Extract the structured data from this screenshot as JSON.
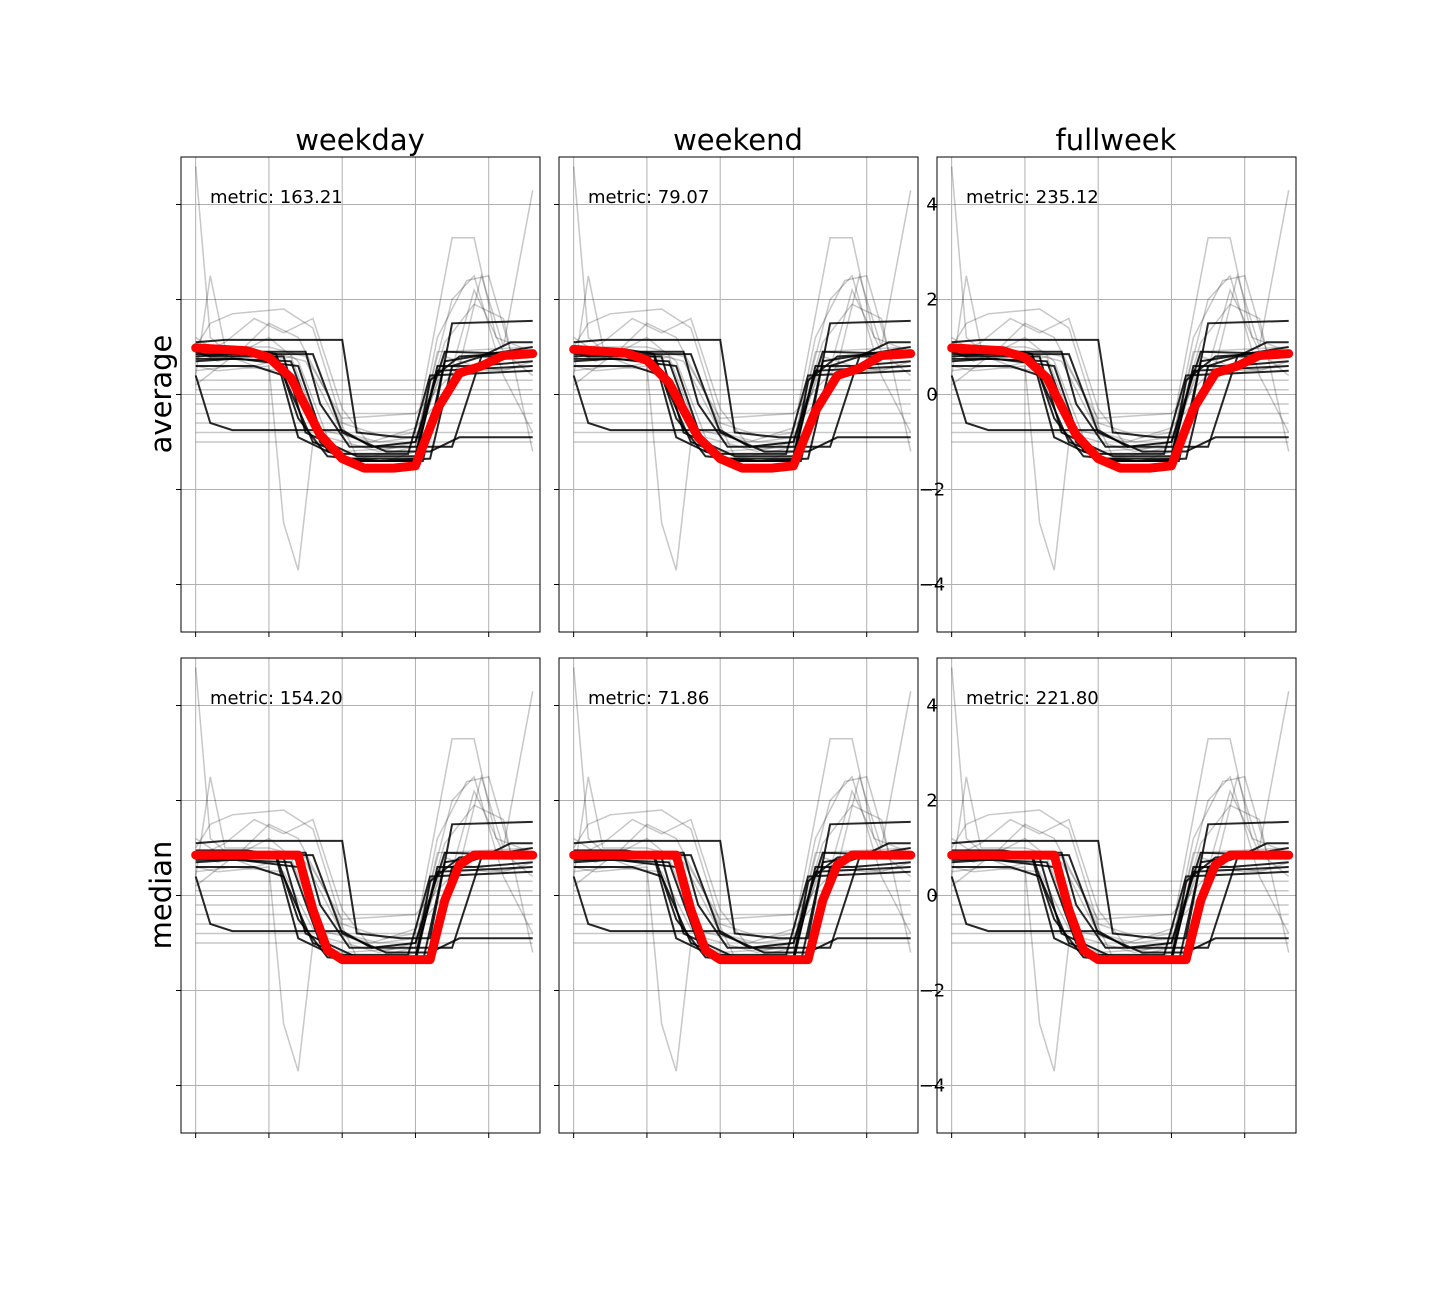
{
  "figure": {
    "columns": [
      "weekday",
      "weekend",
      "fullweek"
    ],
    "rows": [
      "average",
      "median"
    ]
  },
  "chart_data": {
    "type": "line",
    "ylim": [
      -5,
      5
    ],
    "xlim": [
      -0.2,
      4.7
    ],
    "yticks": [
      -4,
      -2,
      0,
      2,
      4
    ],
    "ytick_labels": [
      "−4",
      "−2",
      "0",
      "2",
      "4"
    ],
    "xticks": [
      0,
      1,
      2,
      3,
      4
    ],
    "grid": true,
    "panels": [
      {
        "row": "average",
        "column": "weekday",
        "metric_label": "metric: 163.21",
        "show_ytick_labels": false,
        "center": [
          [
            0,
            0.98
          ],
          [
            0.7,
            0.92
          ],
          [
            1.0,
            0.78
          ],
          [
            1.3,
            0.35
          ],
          [
            1.7,
            -0.85
          ],
          [
            2.0,
            -1.35
          ],
          [
            2.3,
            -1.55
          ],
          [
            2.7,
            -1.55
          ],
          [
            3.0,
            -1.5
          ],
          [
            3.3,
            -0.3
          ],
          [
            3.6,
            0.45
          ],
          [
            3.9,
            0.6
          ],
          [
            4.2,
            0.82
          ],
          [
            4.6,
            0.86
          ]
        ]
      },
      {
        "row": "average",
        "column": "weekend",
        "metric_label": "metric: 79.07",
        "show_ytick_labels": true,
        "center": [
          [
            0,
            0.95
          ],
          [
            0.7,
            0.88
          ],
          [
            1.0,
            0.72
          ],
          [
            1.3,
            0.25
          ],
          [
            1.7,
            -0.9
          ],
          [
            2.0,
            -1.35
          ],
          [
            2.3,
            -1.55
          ],
          [
            2.7,
            -1.55
          ],
          [
            3.0,
            -1.5
          ],
          [
            3.3,
            -0.35
          ],
          [
            3.6,
            0.4
          ],
          [
            3.9,
            0.55
          ],
          [
            4.2,
            0.82
          ],
          [
            4.6,
            0.86
          ]
        ]
      },
      {
        "row": "average",
        "column": "fullweek",
        "metric_label": "metric: 235.12",
        "show_ytick_labels": false,
        "center": [
          [
            0,
            0.98
          ],
          [
            0.7,
            0.92
          ],
          [
            1.0,
            0.78
          ],
          [
            1.3,
            0.35
          ],
          [
            1.7,
            -0.85
          ],
          [
            2.0,
            -1.35
          ],
          [
            2.3,
            -1.55
          ],
          [
            2.7,
            -1.55
          ],
          [
            3.0,
            -1.5
          ],
          [
            3.3,
            -0.3
          ],
          [
            3.6,
            0.45
          ],
          [
            3.9,
            0.6
          ],
          [
            4.2,
            0.82
          ],
          [
            4.6,
            0.86
          ]
        ]
      },
      {
        "row": "median",
        "column": "weekday",
        "metric_label": "metric: 154.20",
        "show_ytick_labels": false,
        "center": [
          [
            0,
            0.85
          ],
          [
            1.4,
            0.85
          ],
          [
            1.6,
            -0.3
          ],
          [
            1.8,
            -1.15
          ],
          [
            2.0,
            -1.35
          ],
          [
            3.2,
            -1.35
          ],
          [
            3.4,
            -0.1
          ],
          [
            3.6,
            0.65
          ],
          [
            3.8,
            0.85
          ],
          [
            4.6,
            0.85
          ]
        ]
      },
      {
        "row": "median",
        "column": "weekend",
        "metric_label": "metric: 71.86",
        "show_ytick_labels": true,
        "center": [
          [
            0,
            0.85
          ],
          [
            1.4,
            0.85
          ],
          [
            1.6,
            -0.3
          ],
          [
            1.8,
            -1.15
          ],
          [
            2.0,
            -1.35
          ],
          [
            3.2,
            -1.35
          ],
          [
            3.4,
            -0.1
          ],
          [
            3.6,
            0.65
          ],
          [
            3.8,
            0.85
          ],
          [
            4.6,
            0.85
          ]
        ]
      },
      {
        "row": "median",
        "column": "fullweek",
        "metric_label": "metric: 221.80",
        "show_ytick_labels": false,
        "center": [
          [
            0,
            0.85
          ],
          [
            1.4,
            0.85
          ],
          [
            1.6,
            -0.3
          ],
          [
            1.8,
            -1.15
          ],
          [
            2.0,
            -1.35
          ],
          [
            3.2,
            -1.35
          ],
          [
            3.4,
            -0.1
          ],
          [
            3.6,
            0.65
          ],
          [
            3.8,
            0.85
          ],
          [
            4.6,
            0.85
          ]
        ]
      }
    ],
    "cluster_members": [
      [
        [
          0,
          0.9
        ],
        [
          0.2,
          0.8
        ],
        [
          1.2,
          0.8
        ],
        [
          1.5,
          -0.8
        ],
        [
          2.2,
          -1.3
        ],
        [
          3.0,
          -1.3
        ],
        [
          3.3,
          0.5
        ],
        [
          4.6,
          0.6
        ]
      ],
      [
        [
          0,
          1.1
        ],
        [
          0.4,
          1.15
        ],
        [
          2.0,
          1.15
        ],
        [
          2.2,
          -0.8
        ],
        [
          2.8,
          -0.9
        ],
        [
          3.2,
          -0.9
        ],
        [
          3.5,
          1.5
        ],
        [
          4.6,
          1.55
        ]
      ],
      [
        [
          0,
          0.4
        ],
        [
          0.2,
          -0.6
        ],
        [
          0.5,
          -0.75
        ],
        [
          2.0,
          -0.75
        ],
        [
          2.4,
          -1.1
        ],
        [
          3.0,
          -1.0
        ],
        [
          3.4,
          0.9
        ],
        [
          4.6,
          0.85
        ]
      ],
      [
        [
          0,
          0.8
        ],
        [
          0.5,
          0.85
        ],
        [
          1.1,
          0.8
        ],
        [
          1.4,
          -0.9
        ],
        [
          1.8,
          -1.2
        ],
        [
          2.2,
          -1.4
        ],
        [
          3.1,
          -1.4
        ],
        [
          3.4,
          0.7
        ],
        [
          4.6,
          1.0
        ]
      ],
      [
        [
          0,
          0.7
        ],
        [
          0.5,
          0.75
        ],
        [
          1.3,
          0.7
        ],
        [
          1.7,
          -1.0
        ],
        [
          2.0,
          -1.4
        ],
        [
          3.0,
          -1.4
        ],
        [
          3.3,
          0.6
        ],
        [
          3.8,
          0.6
        ],
        [
          4.6,
          0.7
        ]
      ],
      [
        [
          0,
          0.75
        ],
        [
          0.6,
          0.75
        ],
        [
          1.4,
          0.6
        ],
        [
          1.8,
          -1.2
        ],
        [
          2.1,
          -1.35
        ],
        [
          3.0,
          -1.35
        ],
        [
          3.2,
          0.3
        ],
        [
          3.6,
          0.8
        ],
        [
          4.6,
          0.9
        ]
      ],
      [
        [
          0,
          0.85
        ],
        [
          1.0,
          0.85
        ],
        [
          1.6,
          0.85
        ],
        [
          2.0,
          -0.8
        ],
        [
          2.6,
          -1.2
        ],
        [
          3.2,
          -1.2
        ],
        [
          3.6,
          -0.9
        ],
        [
          4.6,
          -0.9
        ]
      ],
      [
        [
          0,
          0.6
        ],
        [
          0.8,
          0.6
        ],
        [
          1.2,
          0.4
        ],
        [
          1.6,
          -1.0
        ],
        [
          2.0,
          -1.25
        ],
        [
          2.9,
          -1.25
        ],
        [
          3.2,
          0.4
        ],
        [
          4.6,
          0.5
        ]
      ],
      [
        [
          0,
          0.95
        ],
        [
          0.7,
          0.95
        ],
        [
          1.1,
          0.85
        ],
        [
          1.4,
          -0.5
        ],
        [
          1.8,
          -1.3
        ],
        [
          2.5,
          -1.4
        ],
        [
          3.2,
          -1.35
        ],
        [
          3.5,
          0.6
        ],
        [
          3.9,
          0.8
        ],
        [
          4.6,
          0.8
        ]
      ],
      [
        [
          0,
          0.9
        ],
        [
          0.6,
          0.9
        ],
        [
          1.5,
          0.9
        ],
        [
          1.7,
          -0.2
        ],
        [
          2.1,
          -1.1
        ],
        [
          3.5,
          -1.1
        ],
        [
          3.9,
          0.8
        ],
        [
          4.3,
          1.1
        ],
        [
          4.6,
          1.1
        ]
      ]
    ],
    "background_series": [
      [
        [
          0,
          4.8
        ],
        [
          0.2,
          1.2
        ],
        [
          0.5,
          0.8
        ],
        [
          1.0,
          0.9
        ],
        [
          1.5,
          0.7
        ],
        [
          2.0,
          -0.8
        ],
        [
          2.5,
          -1.0
        ],
        [
          3.0,
          -0.9
        ],
        [
          3.4,
          0.6
        ],
        [
          4.0,
          0.5
        ],
        [
          4.6,
          0.6
        ]
      ],
      [
        [
          0,
          1.0
        ],
        [
          0.2,
          1.5
        ],
        [
          0.5,
          1.7
        ],
        [
          1.2,
          1.8
        ],
        [
          1.6,
          1.4
        ],
        [
          2.0,
          -0.6
        ],
        [
          2.6,
          -0.9
        ],
        [
          3.0,
          -0.8
        ],
        [
          3.5,
          3.3
        ],
        [
          3.8,
          3.3
        ],
        [
          4.1,
          1.2
        ],
        [
          4.6,
          0.9
        ]
      ],
      [
        [
          0,
          0.6
        ],
        [
          0.3,
          0.5
        ],
        [
          1.0,
          0.6
        ],
        [
          1.2,
          -2.7
        ],
        [
          1.4,
          -3.7
        ],
        [
          1.6,
          -1.0
        ],
        [
          2.0,
          -1.2
        ],
        [
          3.0,
          -1.1
        ],
        [
          3.3,
          0.9
        ],
        [
          4.6,
          1.0
        ]
      ],
      [
        [
          0,
          0.4
        ],
        [
          0.2,
          2.5
        ],
        [
          0.4,
          1.0
        ],
        [
          1.0,
          1.0
        ],
        [
          1.5,
          0.8
        ],
        [
          2.0,
          -0.5
        ],
        [
          3.0,
          -0.4
        ],
        [
          3.6,
          0.6
        ],
        [
          3.9,
          2.5
        ],
        [
          4.2,
          1.0
        ],
        [
          4.6,
          4.3
        ]
      ],
      [
        [
          0,
          0.2
        ],
        [
          0.5,
          0.8
        ],
        [
          1.0,
          1.2
        ],
        [
          1.4,
          0.7
        ],
        [
          1.8,
          -0.9
        ],
        [
          2.5,
          -1.2
        ],
        [
          3.0,
          -1.0
        ],
        [
          3.5,
          2.0
        ],
        [
          3.8,
          2.5
        ],
        [
          4.2,
          0.4
        ],
        [
          4.6,
          -0.8
        ]
      ],
      [
        [
          0,
          0.8
        ],
        [
          0.4,
          1.1
        ],
        [
          0.8,
          1.6
        ],
        [
          1.2,
          1.3
        ],
        [
          1.6,
          1.6
        ],
        [
          2.0,
          -0.3
        ],
        [
          2.4,
          -1.1
        ],
        [
          3.0,
          -1.0
        ],
        [
          3.4,
          1.1
        ],
        [
          3.8,
          1.9
        ],
        [
          4.2,
          1.6
        ],
        [
          4.6,
          -1.2
        ]
      ],
      [
        [
          0,
          0.5
        ],
        [
          0.5,
          0.6
        ],
        [
          1.2,
          0.5
        ],
        [
          1.6,
          -0.7
        ],
        [
          2.4,
          -1.0
        ],
        [
          3.0,
          -0.7
        ],
        [
          3.4,
          0.0
        ],
        [
          3.8,
          2.2
        ],
        [
          4.2,
          0.9
        ],
        [
          4.6,
          0.4
        ]
      ],
      [
        [
          0,
          0.3
        ],
        [
          0.5,
          0.3
        ],
        [
          1.3,
          0.3
        ],
        [
          2.0,
          0.3
        ],
        [
          2.5,
          0.3
        ],
        [
          3.2,
          0.3
        ],
        [
          3.7,
          0.3
        ],
        [
          4.6,
          0.3
        ]
      ],
      [
        [
          0,
          0.1
        ],
        [
          1.0,
          0.1
        ],
        [
          2.0,
          0.1
        ],
        [
          3.0,
          0.1
        ],
        [
          4.0,
          0.1
        ],
        [
          4.6,
          0.1
        ]
      ],
      [
        [
          0,
          -0.2
        ],
        [
          1.0,
          -0.2
        ],
        [
          2.0,
          -0.2
        ],
        [
          3.0,
          -0.2
        ],
        [
          4.0,
          -0.2
        ],
        [
          4.6,
          -0.2
        ]
      ],
      [
        [
          0,
          -0.4
        ],
        [
          1.0,
          -0.4
        ],
        [
          2.0,
          -0.4
        ],
        [
          3.0,
          -0.4
        ],
        [
          4.0,
          -0.4
        ],
        [
          4.6,
          -0.4
        ]
      ],
      [
        [
          0,
          -0.6
        ],
        [
          1.0,
          -0.6
        ],
        [
          2.0,
          -0.6
        ],
        [
          3.0,
          -0.6
        ],
        [
          4.0,
          -0.6
        ],
        [
          4.6,
          -0.6
        ]
      ],
      [
        [
          0,
          -0.8
        ],
        [
          1.0,
          -0.8
        ],
        [
          2.0,
          -0.8
        ],
        [
          3.0,
          -0.8
        ],
        [
          4.0,
          -0.8
        ],
        [
          4.6,
          -0.8
        ]
      ],
      [
        [
          0,
          -1.0
        ],
        [
          1.0,
          -1.0
        ],
        [
          2.0,
          -1.0
        ],
        [
          3.0,
          -1.0
        ],
        [
          4.0,
          -1.0
        ],
        [
          4.6,
          -1.0
        ]
      ],
      [
        [
          0,
          0.9
        ],
        [
          0.3,
          0.7
        ],
        [
          0.6,
          0.9
        ],
        [
          1.0,
          1.5
        ],
        [
          1.4,
          1.2
        ],
        [
          1.8,
          0.0
        ],
        [
          2.2,
          -1.3
        ],
        [
          2.6,
          -1.4
        ],
        [
          3.0,
          -1.2
        ],
        [
          3.4,
          0.8
        ],
        [
          3.8,
          0.6
        ],
        [
          4.2,
          0.5
        ],
        [
          4.6,
          0.7
        ]
      ],
      [
        [
          0,
          1.2
        ],
        [
          0.3,
          0.9
        ],
        [
          0.8,
          0.6
        ],
        [
          1.3,
          0.8
        ],
        [
          1.8,
          -1.2
        ],
        [
          2.4,
          -1.3
        ],
        [
          3.0,
          -1.1
        ],
        [
          3.3,
          1.2
        ],
        [
          3.7,
          2.4
        ],
        [
          4.0,
          2.5
        ],
        [
          4.3,
          0.9
        ],
        [
          4.6,
          0.8
        ]
      ]
    ]
  }
}
